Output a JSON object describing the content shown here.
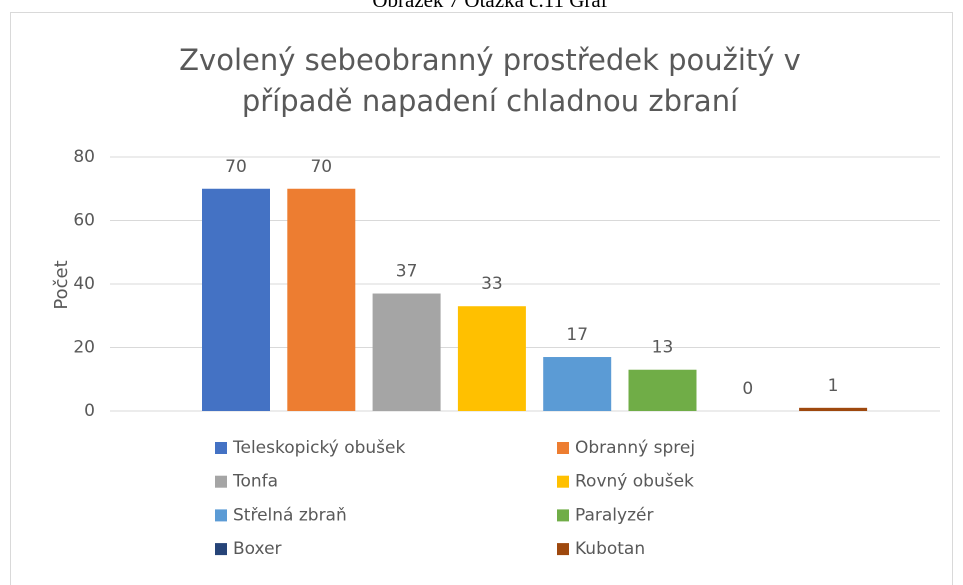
{
  "caption": "Obrázek 7 Otázka č.11 Graf",
  "chart_data": {
    "type": "bar",
    "title": [
      "Zvolený sebeobranný prostředek použitý v",
      "případě napadení chladnou zbraní"
    ],
    "y_label": "Počet",
    "categories": [
      "Teleskopický obušek",
      "Obranný sprej",
      "Tonfa",
      "Rovný obušek",
      "Střelná zbraň",
      "Paralyzér",
      "Boxer",
      "Kubotan"
    ],
    "values": [
      70,
      70,
      37,
      33,
      17,
      13,
      0,
      1
    ],
    "colors": [
      "#4472c4",
      "#ed7d31",
      "#a5a5a5",
      "#ffc000",
      "#5b9bd5",
      "#70ad47",
      "#264478",
      "#9e480e"
    ],
    "ylim": [
      0,
      80
    ],
    "yticks": [
      0,
      20,
      40,
      60,
      80
    ],
    "grid": true,
    "legend": "bottom"
  }
}
